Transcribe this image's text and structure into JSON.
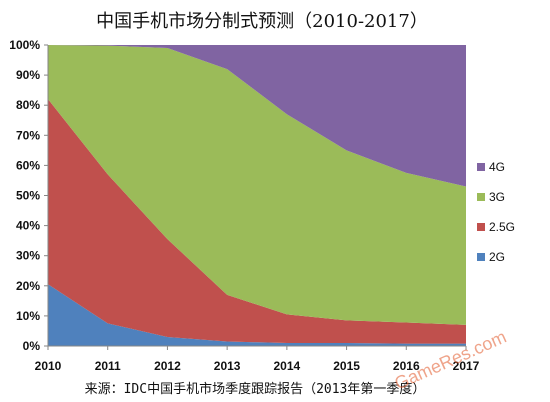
{
  "chart_data": {
    "type": "area",
    "stacked": "percent",
    "title": "中国手机市场分制式预测（2010-2017）",
    "x": [
      "2010",
      "2011",
      "2012",
      "2013",
      "2014",
      "2015",
      "2016",
      "2017"
    ],
    "ylim": [
      0,
      100
    ],
    "yticks": [
      "0%",
      "10%",
      "20%",
      "30%",
      "40%",
      "50%",
      "60%",
      "70%",
      "80%",
      "90%",
      "100%"
    ],
    "grid": false,
    "legend_position": "right",
    "series": [
      {
        "name": "2G",
        "color": "#4f81bd",
        "values": [
          20.5,
          7.5,
          3,
          1.5,
          1,
          1,
          0.8,
          0.8
        ]
      },
      {
        "name": "2.5G",
        "color": "#c0504d",
        "values": [
          61.5,
          49.5,
          32.5,
          15.5,
          9.5,
          7.5,
          7,
          6.2
        ]
      },
      {
        "name": "3G",
        "color": "#9bbb59",
        "values": [
          18,
          42.8,
          63.5,
          75,
          66.5,
          56.5,
          49.7,
          46
        ]
      },
      {
        "name": "4G",
        "color": "#8064a2",
        "values": [
          0,
          0.2,
          1,
          8,
          23,
          35,
          42.5,
          47
        ]
      }
    ],
    "source_note": "来源：IDC中国手机市场季度跟踪报告（2013年第一季度）",
    "watermark": "GameRes.com"
  }
}
